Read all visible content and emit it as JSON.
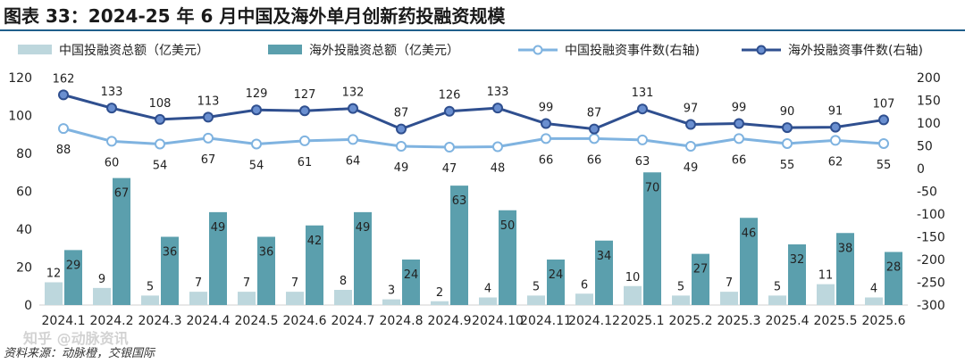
{
  "title": "图表 33：2024-25 年 6 月中国及海外单月创新药投融资规模",
  "source": "资料来源：动脉橙，交银国际",
  "watermark": "知乎 @动脉资讯",
  "colors": {
    "cn_amount": "#bdd7dd",
    "os_amount": "#5b9fad",
    "cn_events": "#7fb3e0",
    "os_events": "#2f4f8f",
    "title_rule": "#1f5f8b"
  },
  "chart_data": {
    "type": "bar+line",
    "categories": [
      "2024.1",
      "2024.2",
      "2024.3",
      "2024.4",
      "2024.5",
      "2024.6",
      "2024.7",
      "2024.8",
      "2024.9",
      "2024.10",
      "2024.11",
      "2024.12",
      "2025.1",
      "2025.2",
      "2025.3",
      "2025.4",
      "2025.5",
      "2025.6"
    ],
    "series": [
      {
        "name": "中国投融资总额（亿美元）",
        "kind": "bar",
        "axis": "left",
        "values": [
          12,
          9,
          5,
          7,
          7,
          7,
          8,
          3,
          2,
          4,
          5,
          6,
          10,
          5,
          7,
          5,
          11,
          4
        ]
      },
      {
        "name": "海外投融资总额（亿美元）",
        "kind": "bar",
        "axis": "left",
        "values": [
          29,
          67,
          36,
          49,
          36,
          42,
          49,
          24,
          63,
          50,
          24,
          34,
          70,
          27,
          46,
          32,
          38,
          28
        ]
      },
      {
        "name": "中国投融资事件数(右轴)",
        "kind": "line",
        "axis": "right",
        "values": [
          88,
          60,
          54,
          67,
          54,
          61,
          64,
          49,
          47,
          48,
          66,
          66,
          63,
          49,
          66,
          55,
          62,
          55
        ]
      },
      {
        "name": "海外投融资事件数(右轴)",
        "kind": "line",
        "axis": "right",
        "values": [
          162,
          133,
          108,
          113,
          129,
          127,
          132,
          87,
          126,
          133,
          99,
          87,
          131,
          97,
          99,
          90,
          91,
          107
        ]
      }
    ],
    "y_left": {
      "min": 0,
      "max": 120,
      "ticks": [
        "0",
        "20",
        "40",
        "60",
        "80",
        "100",
        "120"
      ]
    },
    "y_right": {
      "min": -300,
      "max": 200,
      "ticks": [
        "-300",
        "-250",
        "-200",
        "-150",
        "-100",
        "-50",
        "0",
        "50",
        "100",
        "150",
        "200"
      ]
    },
    "legend_position": "top"
  }
}
